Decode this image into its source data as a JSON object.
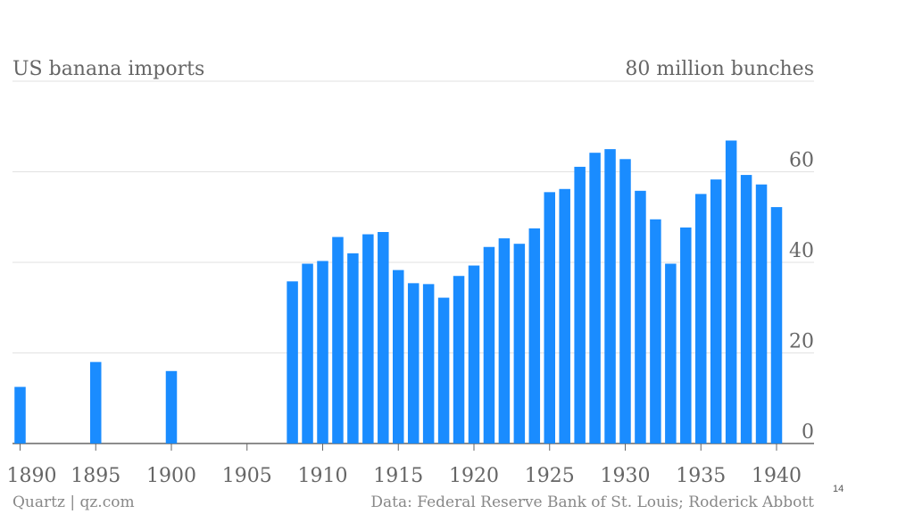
{
  "colors": {
    "bar": "#1a8cff",
    "grid": "#e2e2e2",
    "axis": "#666666"
  },
  "page_number": "14",
  "footer": {
    "source_left": "Quartz | qz.com",
    "source_right": "Data: Federal Reserve Bank of St. Louis; Roderick Abbott"
  },
  "chart_data": {
    "type": "bar",
    "title": "US banana imports",
    "unit_label": "80 million bunches",
    "ylim": [
      0,
      80
    ],
    "y_ticks": [
      0,
      20,
      40,
      60
    ],
    "x_ticks": [
      1890,
      1895,
      1900,
      1905,
      1910,
      1915,
      1920,
      1925,
      1930,
      1935,
      1940
    ],
    "grid": true,
    "x": [
      1890,
      1895,
      1900,
      1908,
      1909,
      1910,
      1911,
      1912,
      1913,
      1914,
      1915,
      1916,
      1917,
      1918,
      1919,
      1920,
      1921,
      1922,
      1923,
      1924,
      1925,
      1926,
      1927,
      1928,
      1929,
      1930,
      1931,
      1932,
      1933,
      1934,
      1935,
      1936,
      1937,
      1938,
      1939,
      1940
    ],
    "values": [
      12.5,
      18,
      16,
      35.8,
      39.7,
      40.3,
      45.6,
      42,
      46.2,
      46.7,
      38.3,
      35.4,
      35.2,
      32.2,
      37,
      39.3,
      43.4,
      45.3,
      44.1,
      47.5,
      55.5,
      56.2,
      61.1,
      64.2,
      65,
      62.8,
      55.8,
      49.5,
      39.7,
      47.7,
      55.1,
      58.3,
      66.9,
      59.3,
      57.2,
      52.2
    ]
  }
}
